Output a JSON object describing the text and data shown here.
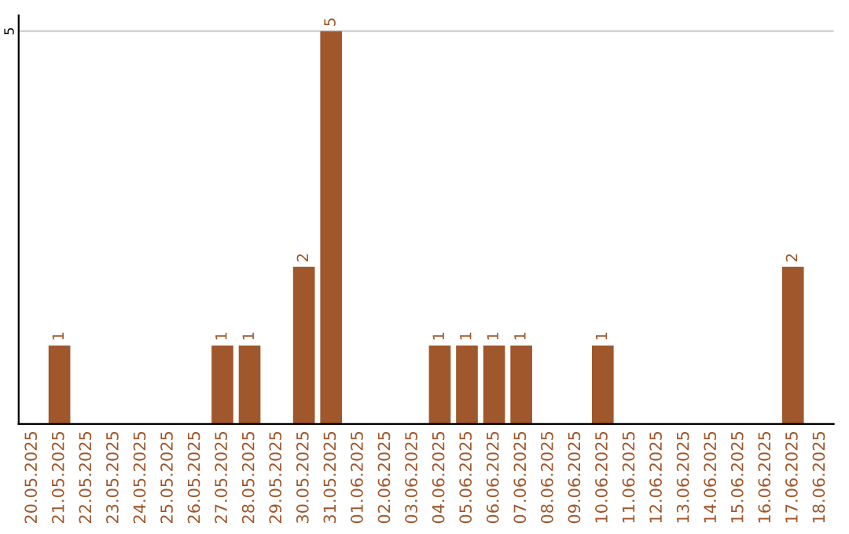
{
  "chart_data": {
    "type": "bar",
    "categories": [
      "20.05.2025",
      "21.05.2025",
      "22.05.2025",
      "23.05.2025",
      "24.05.2025",
      "25.05.2025",
      "26.05.2025",
      "27.05.2025",
      "28.05.2025",
      "29.05.2025",
      "30.05.2025",
      "31.05.2025",
      "01.06.2025",
      "02.06.2025",
      "03.06.2025",
      "04.06.2025",
      "05.06.2025",
      "06.06.2025",
      "07.06.2025",
      "08.06.2025",
      "09.06.2025",
      "10.06.2025",
      "11.06.2025",
      "12.06.2025",
      "13.06.2025",
      "14.06.2025",
      "15.06.2025",
      "16.06.2025",
      "17.06.2025",
      "18.06.2025"
    ],
    "values": [
      0,
      1,
      0,
      0,
      0,
      0,
      0,
      1,
      1,
      0,
      2,
      5,
      0,
      0,
      0,
      1,
      1,
      1,
      1,
      0,
      0,
      1,
      0,
      0,
      0,
      0,
      0,
      0,
      2,
      0
    ],
    "value_labels": [
      null,
      "1",
      null,
      null,
      null,
      null,
      null,
      "1",
      "1",
      null,
      "2",
      "5",
      null,
      null,
      null,
      "1",
      "1",
      "1",
      "1",
      null,
      null,
      "1",
      null,
      null,
      null,
      null,
      null,
      null,
      "2",
      null
    ],
    "color": "#a0572b",
    "ylim": [
      0,
      5.2
    ],
    "yticks": [
      5
    ],
    "grid": "y"
  }
}
